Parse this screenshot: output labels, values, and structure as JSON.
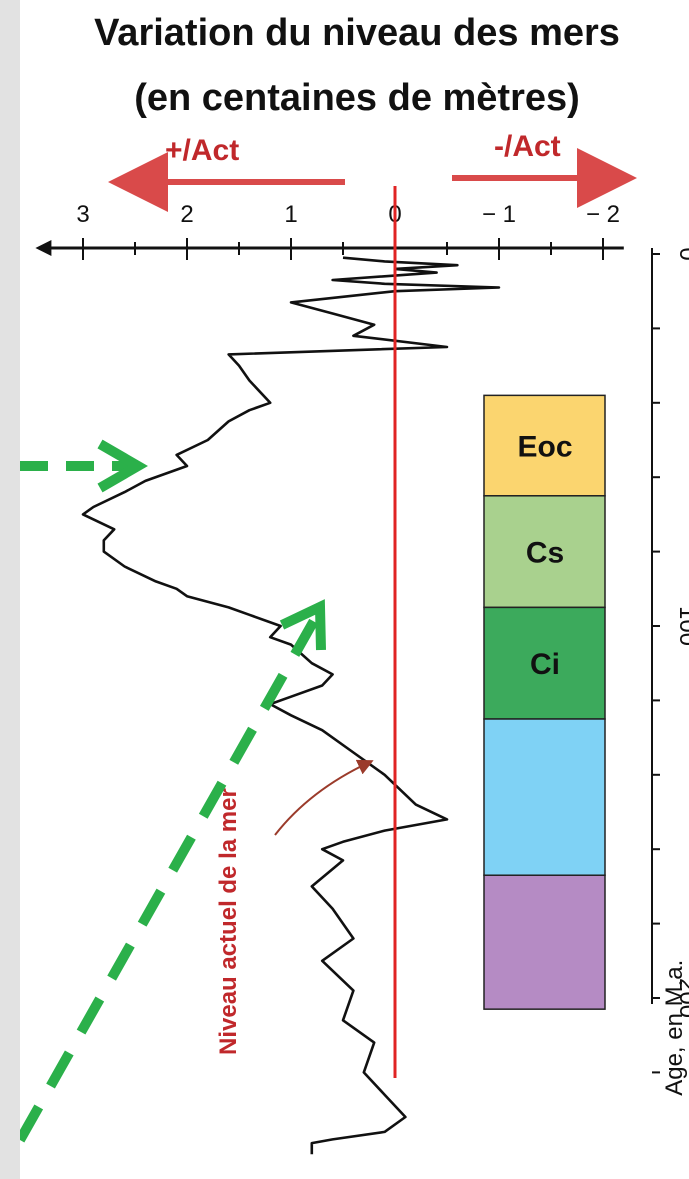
{
  "title_line1": "Variation du niveau des mers",
  "title_line2": "(en centaines de mètres)",
  "arrow_left_label": "+/Act",
  "arrow_right_label": "-/Act",
  "sea_level_label": "Niveau actuel de la mer",
  "colors": {
    "sea_level_line": "#e02424",
    "curve": "#111111",
    "label_red": "#c0282b",
    "arrow_red": "#d94a4a",
    "green_arrow": "#2bb04a",
    "stage_eoc": "#fbd56f",
    "stage_cs": "#a9d18e",
    "stage_ci": "#3caa5c",
    "stage_jurassic": "#7fd2f5",
    "stage_trias": "#b58bc4"
  },
  "chart_data": {
    "type": "line",
    "orientation": "vertical-age",
    "xlabel": "",
    "ylabel": "Age, en M.a.",
    "x_ticks": [
      3,
      2,
      1,
      0,
      -1,
      -2
    ],
    "x_tick_labels": [
      "3",
      "2",
      "1",
      "0",
      "− 1",
      "− 2"
    ],
    "xlim": [
      3.4,
      -2.2
    ],
    "y_ticks": [
      0,
      100,
      200
    ],
    "y_tick_labels": [
      "0",
      "100",
      "200"
    ],
    "ylim": [
      0,
      250
    ],
    "reference_line": {
      "value": 0,
      "label": "Niveau actuel de la mer"
    },
    "series": [
      {
        "points": [
          [
            0.5,
            1
          ],
          [
            0.1,
            2
          ],
          [
            -0.6,
            3
          ],
          [
            0.0,
            4
          ],
          [
            -0.4,
            5
          ],
          [
            0.6,
            7
          ],
          [
            0.1,
            8
          ],
          [
            -1.0,
            9
          ],
          [
            0.0,
            10
          ],
          [
            1.0,
            13
          ],
          [
            0.6,
            16
          ],
          [
            0.2,
            19
          ],
          [
            0.4,
            22
          ],
          [
            -0.5,
            25
          ],
          [
            1.6,
            27
          ],
          [
            1.5,
            30
          ],
          [
            1.4,
            34
          ],
          [
            1.2,
            40
          ],
          [
            1.4,
            42
          ],
          [
            1.6,
            45
          ],
          [
            1.8,
            50
          ],
          [
            2.1,
            54
          ],
          [
            2.0,
            57
          ],
          [
            2.4,
            61
          ],
          [
            2.6,
            64
          ],
          [
            2.9,
            68
          ],
          [
            3.0,
            70
          ],
          [
            2.7,
            74
          ],
          [
            2.8,
            77
          ],
          [
            2.8,
            80
          ],
          [
            2.6,
            84
          ],
          [
            2.3,
            88
          ],
          [
            2.1,
            90
          ],
          [
            2.0,
            92
          ],
          [
            1.6,
            95
          ],
          [
            1.4,
            97
          ],
          [
            1.1,
            100
          ],
          [
            1.2,
            103
          ],
          [
            1.0,
            105
          ],
          [
            0.8,
            110
          ],
          [
            0.6,
            113
          ],
          [
            0.7,
            116
          ],
          [
            1.0,
            119
          ],
          [
            1.2,
            121
          ],
          [
            1.0,
            124
          ],
          [
            0.7,
            128
          ],
          [
            0.4,
            134
          ],
          [
            0.1,
            140
          ],
          [
            -0.2,
            148
          ],
          [
            -0.5,
            152
          ],
          [
            -0.1,
            154
          ],
          [
            0.1,
            155
          ],
          [
            0.5,
            158
          ],
          [
            0.7,
            160
          ],
          [
            0.5,
            163
          ],
          [
            0.8,
            170
          ],
          [
            0.6,
            176
          ],
          [
            0.4,
            184
          ],
          [
            0.7,
            190
          ],
          [
            0.4,
            198
          ],
          [
            0.5,
            206
          ],
          [
            0.2,
            212
          ],
          [
            0.3,
            220
          ],
          [
            0.1,
            226
          ],
          [
            -0.1,
            232
          ],
          [
            0.1,
            236
          ],
          [
            0.6,
            238
          ],
          [
            0.8,
            239
          ],
          [
            0.8,
            242
          ]
        ]
      }
    ],
    "stages": [
      {
        "label": "Eoc",
        "from": 38,
        "to": 65
      },
      {
        "label": "Cs",
        "from": 65,
        "to": 95
      },
      {
        "label": "Ci",
        "from": 95,
        "to": 125
      },
      {
        "label": "",
        "from": 125,
        "to": 167
      },
      {
        "label": "",
        "from": 167,
        "to": 203
      }
    ]
  }
}
